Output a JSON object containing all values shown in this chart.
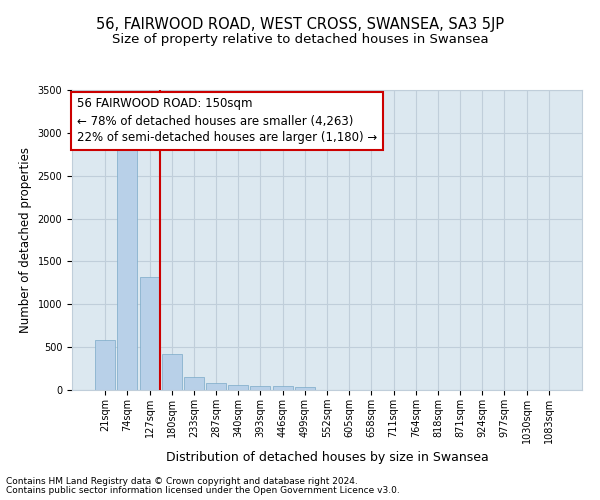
{
  "title1": "56, FAIRWOOD ROAD, WEST CROSS, SWANSEA, SA3 5JP",
  "title2": "Size of property relative to detached houses in Swansea",
  "xlabel": "Distribution of detached houses by size in Swansea",
  "ylabel": "Number of detached properties",
  "categories": [
    "21sqm",
    "74sqm",
    "127sqm",
    "180sqm",
    "233sqm",
    "287sqm",
    "340sqm",
    "393sqm",
    "446sqm",
    "499sqm",
    "552sqm",
    "605sqm",
    "658sqm",
    "711sqm",
    "764sqm",
    "818sqm",
    "871sqm",
    "924sqm",
    "977sqm",
    "1030sqm",
    "1083sqm"
  ],
  "values": [
    580,
    2920,
    1320,
    420,
    155,
    80,
    55,
    50,
    45,
    35,
    5,
    0,
    0,
    0,
    0,
    0,
    0,
    0,
    0,
    0,
    0
  ],
  "bar_color": "#b8d0e8",
  "bar_edge_color": "#7aaac8",
  "highlight_bar_idx": 2,
  "highlight_color": "#cc0000",
  "annotation_line1": "56 FAIRWOOD ROAD: 150sqm",
  "annotation_line2": "← 78% of detached houses are smaller (4,263)",
  "annotation_line3": "22% of semi-detached houses are larger (1,180) →",
  "annotation_box_color": "#ffffff",
  "annotation_box_edge": "#cc0000",
  "ylim": [
    0,
    3500
  ],
  "yticks": [
    0,
    500,
    1000,
    1500,
    2000,
    2500,
    3000,
    3500
  ],
  "grid_color": "#c0ceda",
  "bg_color": "#dce8f0",
  "footer1": "Contains HM Land Registry data © Crown copyright and database right 2024.",
  "footer2": "Contains public sector information licensed under the Open Government Licence v3.0.",
  "title1_fontsize": 10.5,
  "title2_fontsize": 9.5,
  "xlabel_fontsize": 9,
  "ylabel_fontsize": 8.5,
  "tick_fontsize": 7,
  "annotation_fontsize": 8.5,
  "footer_fontsize": 6.5
}
